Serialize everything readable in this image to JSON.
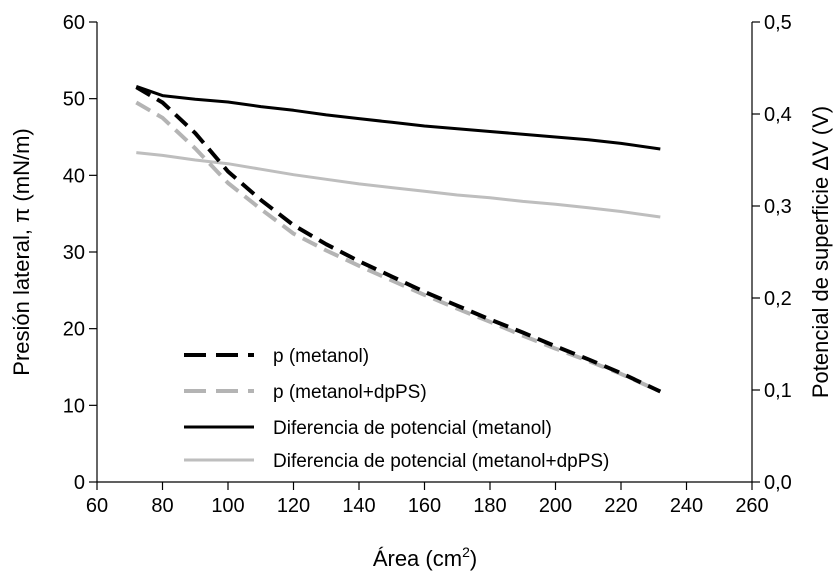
{
  "chart_data": {
    "type": "line",
    "xlabel": "Área (cm",
    "xlabel_sup": "2",
    "xlabel_end": ")",
    "ylabel_left": "Presión lateral, π (mN/m)",
    "ylabel_right": "Potencial de superficie ΔV (V)",
    "xlim": [
      60,
      260
    ],
    "xticks": [
      60,
      80,
      100,
      120,
      140,
      160,
      180,
      200,
      220,
      240,
      260
    ],
    "ylim_left": [
      0,
      60
    ],
    "yticks_left": [
      0,
      10,
      20,
      30,
      40,
      50,
      60
    ],
    "ylim_right": [
      0,
      0.5
    ],
    "yticks_right": [
      "0,0",
      "0,1",
      "0,2",
      "0,3",
      "0,4",
      "0,5"
    ],
    "yticks_right_values": [
      0,
      0.1,
      0.2,
      0.3,
      0.4,
      0.5
    ],
    "grid": false,
    "legend_position": "bottom-left",
    "series": [
      {
        "name": "p (metanol)",
        "axis": "left",
        "color": "#000000",
        "style": "dashed",
        "x": [
          72,
          80,
          90,
          100,
          110,
          120,
          130,
          140,
          150,
          160,
          170,
          180,
          190,
          200,
          210,
          220,
          232
        ],
        "y": [
          51.5,
          49.5,
          45.5,
          40.5,
          36.8,
          33.5,
          31.0,
          28.8,
          26.8,
          24.8,
          23.0,
          21.2,
          19.5,
          17.7,
          16.0,
          14.2,
          11.8
        ]
      },
      {
        "name": "p (metanol+dpPS)",
        "axis": "left",
        "color": "#b4b4b4",
        "style": "dashed",
        "x": [
          72,
          80,
          90,
          100,
          110,
          120,
          130,
          140,
          150,
          160,
          170,
          180,
          190,
          200,
          210,
          220,
          232
        ],
        "y": [
          49.5,
          47.5,
          43.5,
          39.0,
          35.6,
          32.4,
          30.2,
          28.2,
          26.3,
          24.4,
          22.6,
          20.9,
          19.1,
          17.4,
          15.8,
          14.1,
          11.8
        ]
      },
      {
        "name": "Diferencia de potencial (metanol)",
        "axis": "right",
        "color": "#000000",
        "style": "solid",
        "x": [
          72,
          80,
          90,
          100,
          110,
          120,
          130,
          140,
          150,
          160,
          170,
          180,
          190,
          200,
          210,
          220,
          232
        ],
        "y": [
          0.43,
          0.42,
          0.416,
          0.413,
          0.408,
          0.404,
          0.399,
          0.395,
          0.391,
          0.387,
          0.384,
          0.381,
          0.378,
          0.375,
          0.372,
          0.368,
          0.362
        ]
      },
      {
        "name": "Diferencia de potencial (metanol+dpPS)",
        "axis": "right",
        "color": "#bebebe",
        "style": "solid",
        "x": [
          72,
          80,
          90,
          100,
          110,
          120,
          130,
          140,
          150,
          160,
          170,
          180,
          190,
          200,
          210,
          220,
          232
        ],
        "y": [
          0.358,
          0.355,
          0.35,
          0.346,
          0.34,
          0.334,
          0.329,
          0.324,
          0.32,
          0.316,
          0.312,
          0.309,
          0.305,
          0.302,
          0.298,
          0.294,
          0.288
        ]
      }
    ]
  }
}
